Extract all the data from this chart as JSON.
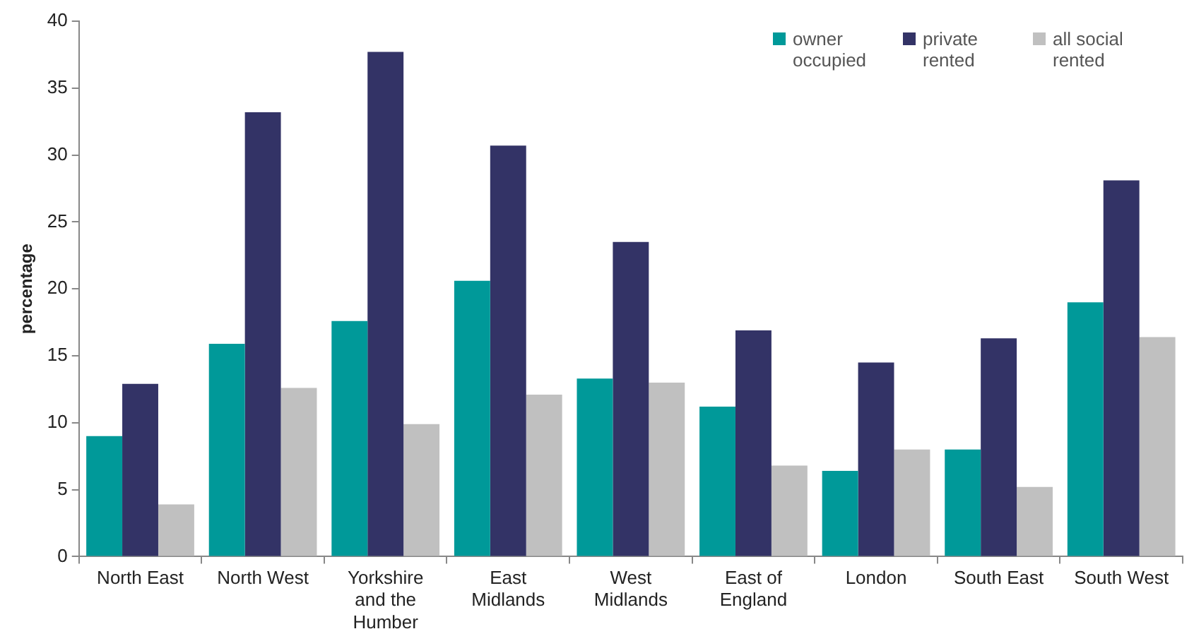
{
  "chart_data": {
    "type": "bar",
    "ylabel": "percentage",
    "categories": [
      "North East",
      "North West",
      "Yorkshire and the Humber",
      "East Midlands",
      "West Midlands",
      "East of England",
      "London",
      "South East",
      "South West"
    ],
    "series": [
      {
        "name": "owner occupied",
        "color": "#009999",
        "values": [
          9.0,
          15.9,
          17.6,
          20.6,
          13.3,
          11.2,
          6.4,
          8.0,
          19.0
        ]
      },
      {
        "name": "private rented",
        "color": "#333366",
        "values": [
          12.9,
          33.2,
          37.7,
          30.7,
          23.5,
          16.9,
          14.5,
          16.3,
          28.1
        ]
      },
      {
        "name": "all social rented",
        "color": "#c0c0c0",
        "values": [
          3.9,
          12.6,
          9.9,
          12.1,
          13.0,
          6.8,
          8.0,
          5.2,
          16.4
        ]
      }
    ],
    "ylim": [
      0,
      40
    ],
    "yticks": [
      0,
      5,
      10,
      15,
      20,
      25,
      30,
      35,
      40
    ],
    "grid": false,
    "legend": "top right"
  }
}
